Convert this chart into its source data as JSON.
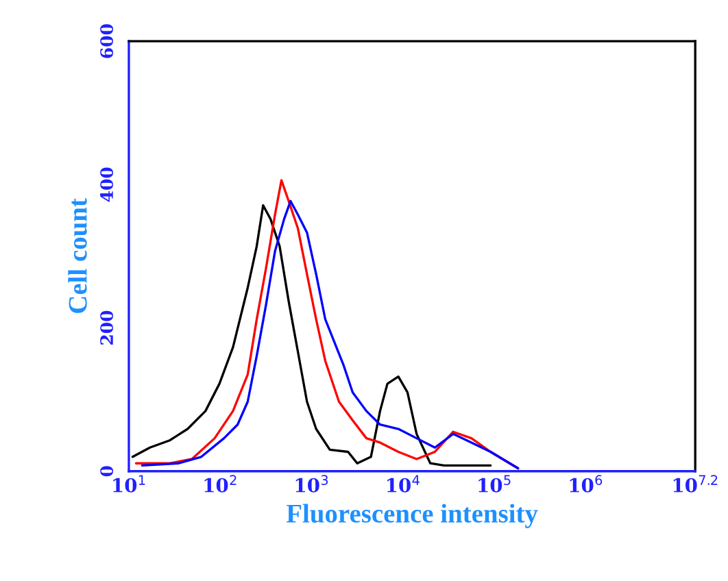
{
  "chart_data": {
    "type": "line",
    "xlabel": "Fluorescence intensity",
    "ylabel": "Cell count",
    "log": "x",
    "grid": false,
    "xlim": [
      10,
      15848932
    ],
    "xticks": [
      {
        "value": 10,
        "label": "10$^{1}$"
      },
      {
        "value": 100,
        "label": "10$^{2}$"
      },
      {
        "value": 1000,
        "label": "10$^{3}$"
      },
      {
        "value": 10000,
        "label": "10$^{4}$"
      },
      {
        "value": 100000,
        "label": "10$^{5}$"
      },
      {
        "value": 1000000,
        "label": "10$^{6}$"
      },
      {
        "value": 15848932,
        "label": "10$^{7.2}$"
      }
    ],
    "ylim": [
      0,
      600
    ],
    "yticks": [
      0,
      200,
      400,
      600
    ],
    "series": [
      {
        "color": "#000000",
        "x": [
          11,
          17,
          28,
          44,
          69,
          98,
          138,
          200,
          251,
          295,
          355,
          447,
          562,
          708,
          891,
          1122,
          1585,
          2512,
          3162,
          4467,
          5623,
          6761,
          8913,
          11220,
          14125,
          19953,
          28184,
          72444,
          91201
        ],
        "values": [
          20,
          33,
          43,
          59,
          84,
          122,
          173,
          256,
          314,
          371,
          352,
          314,
          237,
          167,
          97,
          59,
          30,
          27,
          11,
          20,
          84,
          122,
          132,
          110,
          52,
          11,
          8,
          8,
          8
        ]
      },
      {
        "color": "#ff0000",
        "x": [
          12,
          28,
          49,
          87,
          138,
          200,
          251,
          316,
          398,
          468,
          562,
          708,
          891,
          1122,
          1413,
          1995,
          2818,
          3981,
          5623,
          8913,
          14125,
          22387,
          35481,
          56234,
          91201,
          181970
        ],
        "values": [
          11,
          11,
          17,
          46,
          84,
          135,
          212,
          282,
          358,
          406,
          377,
          339,
          275,
          212,
          154,
          97,
          71,
          46,
          40,
          27,
          17,
          27,
          55,
          46,
          27,
          4
        ]
      },
      {
        "color": "#0000ff",
        "x": [
          14,
          35,
          62,
          110,
          155,
          200,
          251,
          316,
          398,
          501,
          589,
          708,
          891,
          1122,
          1413,
          1778,
          2239,
          2818,
          3981,
          5623,
          8913,
          14125,
          22387,
          35481,
          56234,
          91201,
          181970
        ],
        "values": [
          8,
          11,
          20,
          46,
          65,
          97,
          161,
          231,
          307,
          352,
          377,
          358,
          333,
          275,
          212,
          180,
          148,
          110,
          84,
          65,
          59,
          46,
          33,
          52,
          40,
          27,
          4
        ]
      }
    ]
  }
}
